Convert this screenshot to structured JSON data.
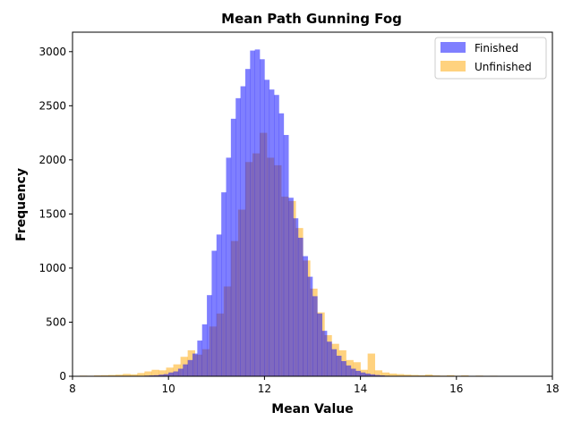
{
  "chart_data": {
    "type": "histogram",
    "title": "Mean Path Gunning Fog",
    "xlabel": "Mean Value",
    "ylabel": "Frequency",
    "xlim": [
      8,
      18
    ],
    "ylim": [
      0,
      3180
    ],
    "xticks": [
      8,
      10,
      12,
      14,
      16,
      18
    ],
    "yticks": [
      0,
      500,
      1000,
      1500,
      2000,
      2500,
      3000
    ],
    "legend_position": "top-right",
    "series": [
      {
        "name": "Finished",
        "color": "#0000ff",
        "opacity": 0.5,
        "bin_width": 0.1,
        "bin_start": 9.3,
        "values": [
          3,
          4,
          6,
          8,
          10,
          15,
          20,
          35,
          45,
          70,
          110,
          150,
          210,
          330,
          480,
          750,
          1160,
          1310,
          1700,
          2020,
          2380,
          2570,
          2680,
          2840,
          3010,
          3020,
          2930,
          2740,
          2650,
          2600,
          2430,
          2230,
          1650,
          1460,
          1280,
          1110,
          920,
          740,
          580,
          420,
          320,
          250,
          190,
          140,
          100,
          70,
          50,
          35,
          25,
          18,
          12,
          8,
          5,
          3,
          2
        ]
      },
      {
        "name": "Unfinished",
        "color": "#ffa500",
        "opacity": 0.5,
        "bin_width": 0.15,
        "bin_start": 8.0,
        "values": [
          4,
          6,
          5,
          8,
          10,
          12,
          15,
          22,
          18,
          30,
          45,
          60,
          55,
          80,
          110,
          180,
          240,
          200,
          250,
          460,
          580,
          830,
          1250,
          1540,
          1980,
          2060,
          2250,
          2020,
          1950,
          1660,
          1620,
          1370,
          1070,
          810,
          590,
          380,
          300,
          240,
          150,
          130,
          60,
          210,
          55,
          35,
          25,
          20,
          15,
          12,
          10,
          15,
          8,
          6,
          10,
          5,
          8,
          4,
          6,
          4,
          5,
          3,
          2,
          4,
          3
        ]
      }
    ]
  }
}
